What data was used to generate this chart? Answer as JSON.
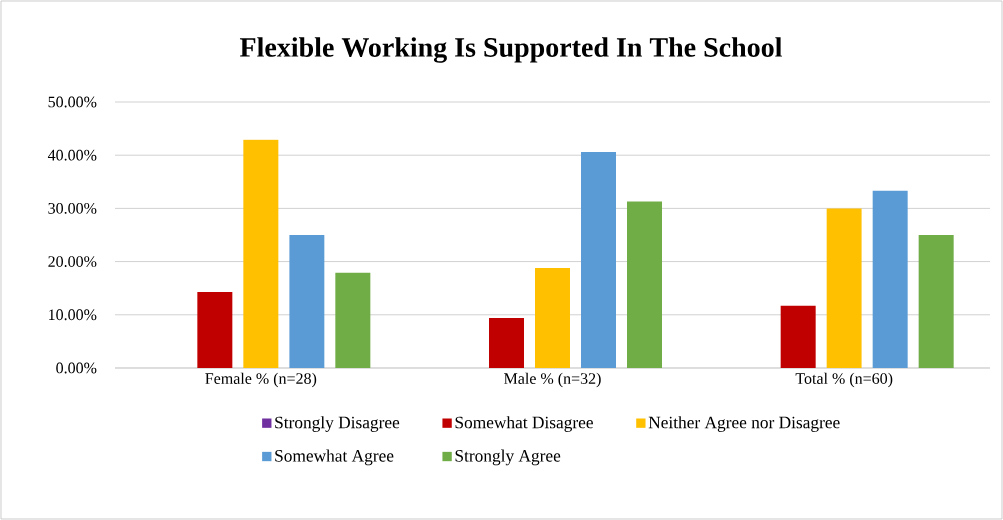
{
  "chart_data": {
    "type": "bar",
    "title": "Flexible Working Is Supported In The School",
    "categories": [
      "Female % (n=28)",
      "Male % (n=32)",
      "Total % (n=60)"
    ],
    "series": [
      {
        "name": "Strongly Disagree",
        "color": "#7030a0",
        "values": [
          0,
          0,
          0
        ]
      },
      {
        "name": "Somewhat Disagree",
        "color": "#c00000",
        "values": [
          14.3,
          9.4,
          11.7
        ]
      },
      {
        "name": "Neither Agree nor Disagree",
        "color": "#ffc000",
        "values": [
          42.9,
          18.8,
          30.0
        ]
      },
      {
        "name": "Somewhat Agree",
        "color": "#5b9bd5",
        "values": [
          25.0,
          40.6,
          33.3
        ]
      },
      {
        "name": "Strongly Agree",
        "color": "#70ad47",
        "values": [
          17.9,
          31.3,
          25.0
        ]
      }
    ],
    "ylim": [
      0,
      50
    ],
    "yticks": [
      {
        "value": 0,
        "label": "0.00%"
      },
      {
        "value": 10,
        "label": "10.00%"
      },
      {
        "value": 20,
        "label": "20.00%"
      },
      {
        "value": 30,
        "label": "30.00%"
      },
      {
        "value": 40,
        "label": "40.00%"
      },
      {
        "value": 50,
        "label": "50.00%"
      }
    ],
    "grid": "y",
    "legend": "bottom"
  }
}
